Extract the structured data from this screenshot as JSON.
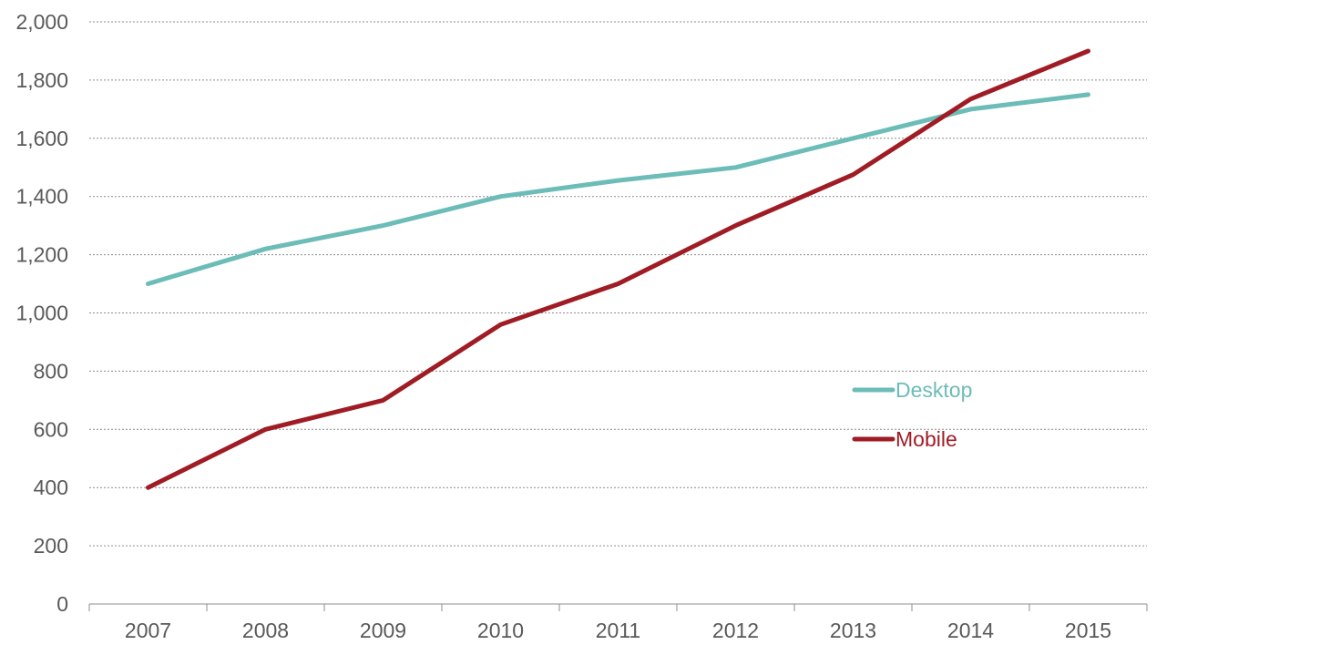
{
  "chart_data": {
    "type": "line",
    "title": "",
    "xlabel": "",
    "ylabel": "",
    "categories": [
      "2007",
      "2008",
      "2009",
      "2010",
      "2011",
      "2012",
      "2013",
      "2014",
      "2015"
    ],
    "ylim": [
      0,
      2000
    ],
    "yticks": [
      0,
      200,
      400,
      600,
      800,
      1000,
      1200,
      1400,
      1600,
      1800,
      2000
    ],
    "ytick_labels": [
      "0",
      "200",
      "400",
      "600",
      "800",
      "1,000",
      "1,200",
      "1,400",
      "1,600",
      "1,800",
      "2,000"
    ],
    "grid": "horizontal dashed",
    "legend": "lower-right inside plot",
    "series": [
      {
        "name": "Desktop",
        "color": "#6cbcb8",
        "values": [
          1100,
          1220,
          1300,
          1400,
          1455,
          1500,
          1600,
          1700,
          1750
        ]
      },
      {
        "name": "Mobile",
        "color": "#a01c25",
        "values": [
          400,
          600,
          700,
          960,
          1100,
          1300,
          1475,
          1735,
          1900
        ]
      }
    ]
  }
}
